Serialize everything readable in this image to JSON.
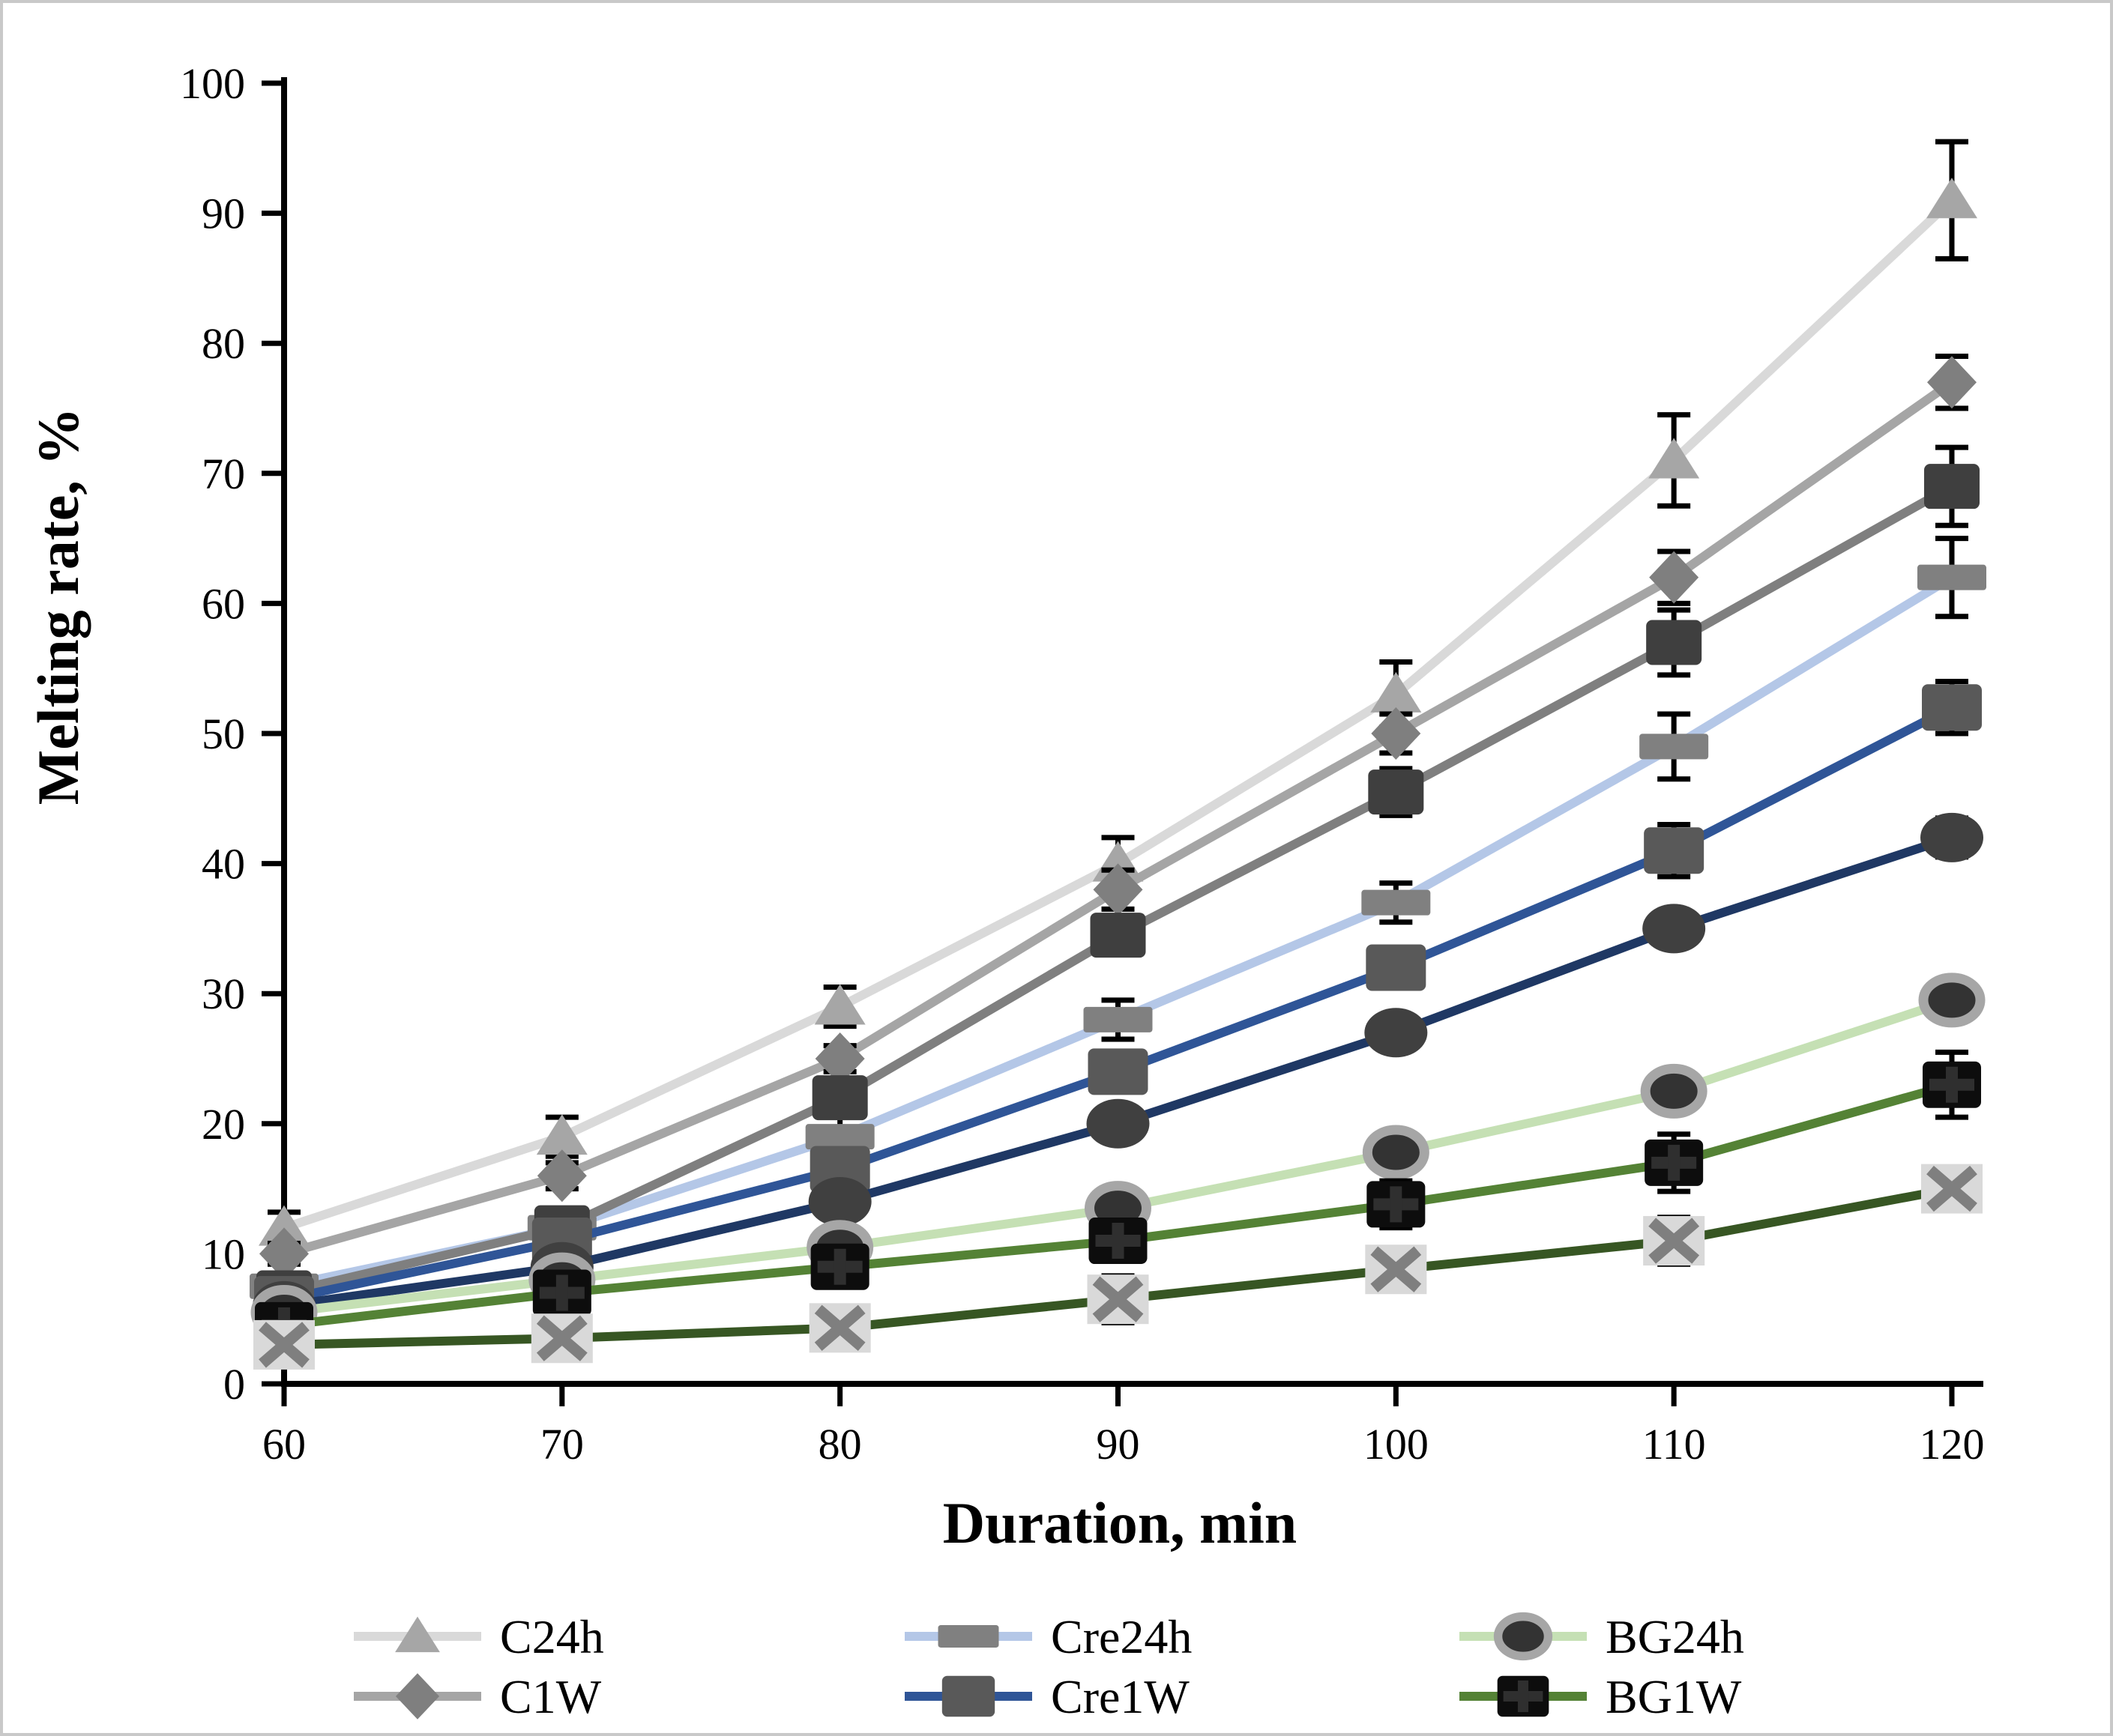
{
  "figure": {
    "background": "#ffffff",
    "border_color": "#c9c9c9",
    "axis_color": "#000000"
  },
  "chart_data": {
    "type": "line",
    "title": "",
    "xlabel": "Duration, min",
    "ylabel": "Melting rate, %",
    "x": [
      60,
      70,
      80,
      90,
      100,
      110,
      120
    ],
    "xlim": [
      60,
      120
    ],
    "ylim": [
      0,
      100
    ],
    "ytick_step": 10,
    "xtick_labels": [
      "60",
      "70",
      "80",
      "90",
      "100",
      "110",
      "120"
    ],
    "ytick_labels": [
      "0",
      "10",
      "20",
      "30",
      "40",
      "50",
      "60",
      "70",
      "80",
      "90",
      "100"
    ],
    "grid": false,
    "legend_position": "bottom",
    "error_bars": true,
    "series": [
      {
        "label": "C24h",
        "in_legend": true,
        "line_color": "#d9d9d9",
        "marker": "triangle",
        "marker_color": "#a6a6a6",
        "values": [
          12,
          19,
          29,
          40,
          53,
          71,
          91
        ],
        "err": [
          1.2,
          1.5,
          1.5,
          2,
          2.5,
          3.5,
          4.5
        ]
      },
      {
        "label": "C1W",
        "in_legend": true,
        "line_color": "#a5a5a5",
        "marker": "diamond",
        "marker_color": "#7f7f7f",
        "values": [
          10,
          16,
          25,
          38,
          50,
          62,
          77
        ],
        "err": [
          0.8,
          1,
          1,
          1.5,
          1.5,
          2,
          2
        ]
      },
      {
        "label": "Cre24h",
        "in_legend": true,
        "line_color": "#b4c7e7",
        "marker": "dash",
        "marker_color": "#808080",
        "values": [
          7.5,
          12,
          19,
          28,
          37,
          49,
          62
        ],
        "err": [
          0.8,
          1,
          1.5,
          1.5,
          1.5,
          2.5,
          3
        ]
      },
      {
        "label": "",
        "in_legend": false,
        "line_color": "#7f7f7f",
        "marker": "square",
        "marker_color": "#3f3f3f",
        "values": [
          7,
          12,
          22,
          34.5,
          45.5,
          57,
          69
        ],
        "err": [
          0.8,
          1,
          1.2,
          1.5,
          1.8,
          2.5,
          3
        ]
      },
      {
        "label": "Cre1W",
        "in_legend": true,
        "line_color": "#2f5597",
        "marker": "bigsquare",
        "marker_color": "#595959",
        "values": [
          6.5,
          11,
          16.5,
          24,
          32,
          41,
          52
        ],
        "err": [
          0.8,
          1,
          1,
          1.5,
          1.5,
          2,
          2
        ]
      },
      {
        "label": "",
        "in_legend": false,
        "line_color": "#1f3864",
        "marker": "circle",
        "marker_color": "#404040",
        "values": [
          6,
          9,
          14,
          20,
          27,
          35,
          42
        ],
        "err": [
          0.5,
          0.8,
          1,
          1,
          1.2,
          1.2,
          1.5
        ]
      },
      {
        "label": "BG24h",
        "in_legend": true,
        "line_color": "#c5e0b4",
        "marker": "ringcircle",
        "marker_color": "#333333",
        "ring_color": "#a6a6a6",
        "values": [
          5.5,
          8,
          10.5,
          13.5,
          17.8,
          22.5,
          29.5
        ],
        "err": [
          0.5,
          0.8,
          1,
          1,
          1.2,
          1.2,
          1.5
        ]
      },
      {
        "label": "BG1W",
        "in_legend": true,
        "line_color": "#548235",
        "marker": "plussquare",
        "marker_color": "#0d0d0d",
        "plus_color": "#2f2f2f",
        "values": [
          4.5,
          7,
          9,
          11,
          13.8,
          17,
          23
        ],
        "err": [
          1,
          1.2,
          1.5,
          1.5,
          1.8,
          2.2,
          2.5
        ]
      },
      {
        "label": "",
        "in_legend": false,
        "line_color": "#375623",
        "marker": "xsquare",
        "marker_color": "#d9d9d9",
        "x_color": "#7f7f7f",
        "values": [
          3,
          3.5,
          4.3,
          6.5,
          8.8,
          11,
          15
        ],
        "err": [
          0.8,
          1,
          1.2,
          1.8,
          1.5,
          1.8,
          1.5
        ]
      }
    ],
    "legend_rows": [
      [
        "C24h",
        "Cre24h",
        "BG24h"
      ],
      [
        "C1W",
        "Cre1W",
        "BG1W"
      ]
    ]
  },
  "layout_note": "values read from axes; y axis 0-100 step 10"
}
